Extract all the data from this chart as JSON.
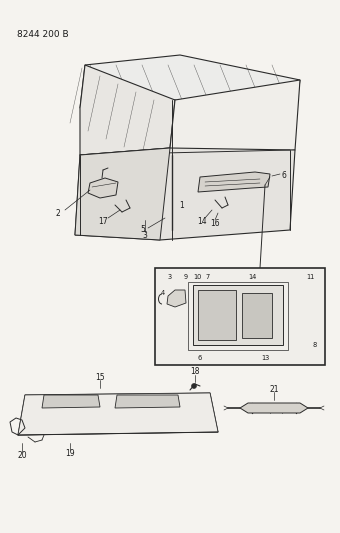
{
  "title": "8244 200 B",
  "bg": "#f5f3ef",
  "lc": "#2a2a2a",
  "tc": "#1a1a1a",
  "fig_width": 3.4,
  "fig_height": 5.33,
  "dpi": 100
}
